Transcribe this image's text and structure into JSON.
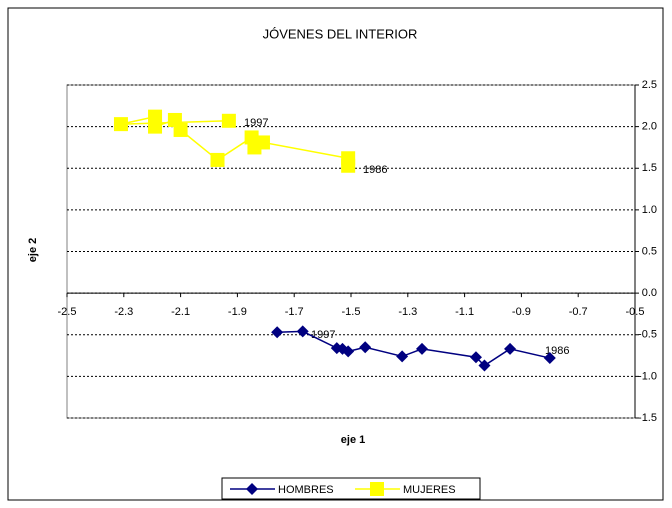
{
  "chart_data": {
    "type": "scatter",
    "title": "JÓVENES DEL INTERIOR",
    "xlabel": "eje 1",
    "ylabel": "eje 2",
    "xlim": [
      -2.5,
      -0.5
    ],
    "xticks": [
      -2.5,
      -2.3,
      -2.1,
      -1.9,
      -1.7,
      -1.5,
      -1.3,
      -1.1,
      -0.9,
      -0.7,
      -0.5
    ],
    "ylim": [
      -1.5,
      2.5
    ],
    "yticks": [
      {
        "value": -1.5,
        "label": "-1.5"
      },
      {
        "value": -1,
        "label": "-1.0"
      },
      {
        "value": -0.5,
        "label": "-0.5"
      },
      {
        "value": 0,
        "label": "0.0"
      },
      {
        "value": 0.5,
        "label": "0.5"
      },
      {
        "value": 1,
        "label": "1.0"
      },
      {
        "value": 1.5,
        "label": "1.5"
      },
      {
        "value": 2,
        "label": "2.0"
      },
      {
        "value": 2.5,
        "label": "2.5"
      }
    ],
    "grid": true,
    "legend": "bottom",
    "annotations": [
      "1997",
      "1986",
      "1997",
      "1986"
    ],
    "series": [
      {
        "name": "HOMBRES",
        "color": "#000080",
        "x": [
          -0.8,
          -0.94,
          -1.03,
          -1.06,
          -1.25,
          -1.32,
          -1.45,
          -1.51,
          -1.53,
          -1.55,
          -1.67,
          -1.76
        ],
        "values": [
          -0.78,
          -0.67,
          -0.87,
          -0.77,
          -0.67,
          -0.76,
          -0.65,
          -0.7,
          -0.67,
          -0.66,
          -0.46,
          -0.47
        ]
      },
      {
        "name": "MUJERES",
        "color": "#ffff00",
        "x": [
          -1.51,
          -1.51,
          -1.81,
          -1.84,
          -1.85,
          -1.97,
          -2.1,
          -2.12,
          -2.19,
          -2.19,
          -2.31,
          -1.93
        ],
        "values": [
          1.53,
          1.62,
          1.81,
          1.75,
          1.87,
          1.6,
          1.96,
          2.08,
          2.0,
          2.12,
          2.03,
          2.07
        ]
      }
    ]
  }
}
